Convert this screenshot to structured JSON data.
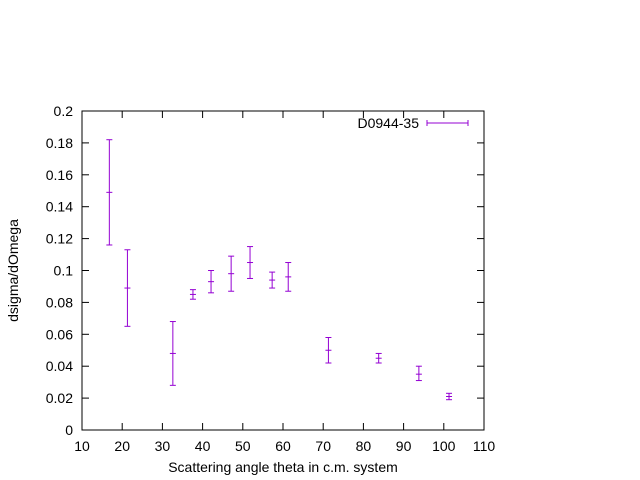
{
  "chart_data": {
    "type": "scatter",
    "title": "",
    "xlabel": "Scattering angle theta in c.m. system",
    "ylabel": "dsigma/dOmega",
    "xlim": [
      10,
      110
    ],
    "ylim": [
      0,
      0.2
    ],
    "xticks": [
      10,
      20,
      30,
      40,
      50,
      60,
      70,
      80,
      90,
      100,
      110
    ],
    "yticks": [
      0,
      0.02,
      0.04,
      0.06,
      0.08,
      0.1,
      0.12,
      0.14,
      0.16,
      0.18,
      0.2
    ],
    "ytick_labels": [
      "0",
      "0.02",
      "0.04",
      "0.06",
      "0.08",
      "0.1",
      "0.12",
      "0.14",
      "0.16",
      "0.18",
      "0.2"
    ],
    "grid": false,
    "legend_position": "top-right",
    "series": [
      {
        "name": "D0944-35",
        "color": "#9400d3",
        "style": "errorbars",
        "points": [
          {
            "x": 16.8,
            "y": 0.149,
            "ylow": 0.116,
            "yhigh": 0.182
          },
          {
            "x": 21.3,
            "y": 0.089,
            "ylow": 0.065,
            "yhigh": 0.113
          },
          {
            "x": 32.6,
            "y": 0.048,
            "ylow": 0.028,
            "yhigh": 0.068
          },
          {
            "x": 37.6,
            "y": 0.085,
            "ylow": 0.082,
            "yhigh": 0.088
          },
          {
            "x": 42.1,
            "y": 0.093,
            "ylow": 0.086,
            "yhigh": 0.1
          },
          {
            "x": 47.1,
            "y": 0.098,
            "ylow": 0.087,
            "yhigh": 0.109
          },
          {
            "x": 51.8,
            "y": 0.105,
            "ylow": 0.095,
            "yhigh": 0.115
          },
          {
            "x": 57.3,
            "y": 0.094,
            "ylow": 0.089,
            "yhigh": 0.099
          },
          {
            "x": 61.3,
            "y": 0.096,
            "ylow": 0.087,
            "yhigh": 0.105
          },
          {
            "x": 71.3,
            "y": 0.05,
            "ylow": 0.042,
            "yhigh": 0.058
          },
          {
            "x": 83.8,
            "y": 0.045,
            "ylow": 0.042,
            "yhigh": 0.048
          },
          {
            "x": 93.8,
            "y": 0.035,
            "ylow": 0.031,
            "yhigh": 0.04
          },
          {
            "x": 101.3,
            "y": 0.021,
            "ylow": 0.019,
            "yhigh": 0.023
          }
        ]
      }
    ]
  }
}
